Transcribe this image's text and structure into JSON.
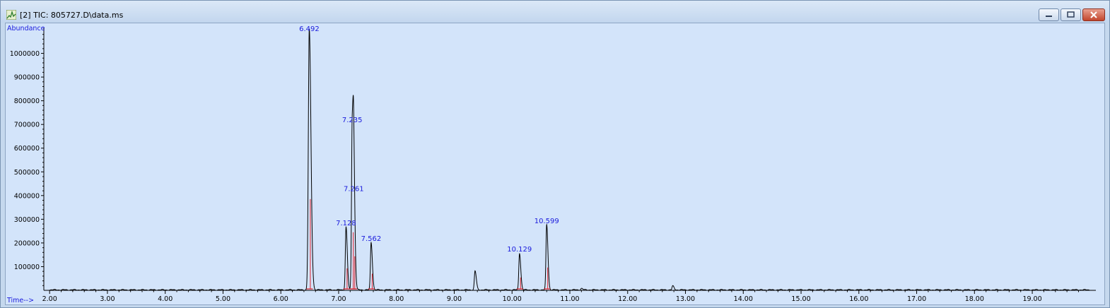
{
  "window": {
    "title": "[2] TIC: 805727.D\\data.ms",
    "icon": "chromatogram-icon",
    "controls": [
      "minimize-icon",
      "restore-icon",
      "close-icon"
    ]
  },
  "chart_data": {
    "type": "line",
    "ylabel": "Abundance",
    "xlabel": "Time-->",
    "xlim": [
      1.9,
      20.1
    ],
    "ylim": [
      0,
      1100000
    ],
    "x_ticks": [
      "2.00",
      "3.00",
      "4.00",
      "5.00",
      "6.00",
      "7.00",
      "8.00",
      "9.00",
      "10.00",
      "11.00",
      "12.00",
      "13.00",
      "14.00",
      "15.00",
      "16.00",
      "17.00",
      "18.00",
      "19.00"
    ],
    "y_ticks": [
      "100000",
      "200000",
      "300000",
      "400000",
      "500000",
      "600000",
      "700000",
      "800000",
      "900000",
      "1000000"
    ],
    "grid": false,
    "peaks": [
      {
        "rt": 6.492,
        "label": "6.492",
        "height": 1100000
      },
      {
        "rt": 7.128,
        "label": "7.128",
        "height": 265000
      },
      {
        "rt": 7.235,
        "label": "7.235",
        "height": 700000
      },
      {
        "rt": 7.261,
        "label": "7.261",
        "height": 410000
      },
      {
        "rt": 7.562,
        "label": "7.562",
        "height": 200000
      },
      {
        "rt": 9.36,
        "label": "",
        "height": 80000
      },
      {
        "rt": 10.129,
        "label": "10.129",
        "height": 155000
      },
      {
        "rt": 10.599,
        "label": "10.599",
        "height": 275000
      },
      {
        "rt": 11.2,
        "label": "",
        "height": 6000
      },
      {
        "rt": 12.78,
        "label": "",
        "height": 16000
      }
    ],
    "baseline": 2000,
    "colors": {
      "trace": "#000000",
      "labels": "#1a1adc",
      "integration": "#e0202a",
      "background": "#d3e4fa"
    }
  }
}
